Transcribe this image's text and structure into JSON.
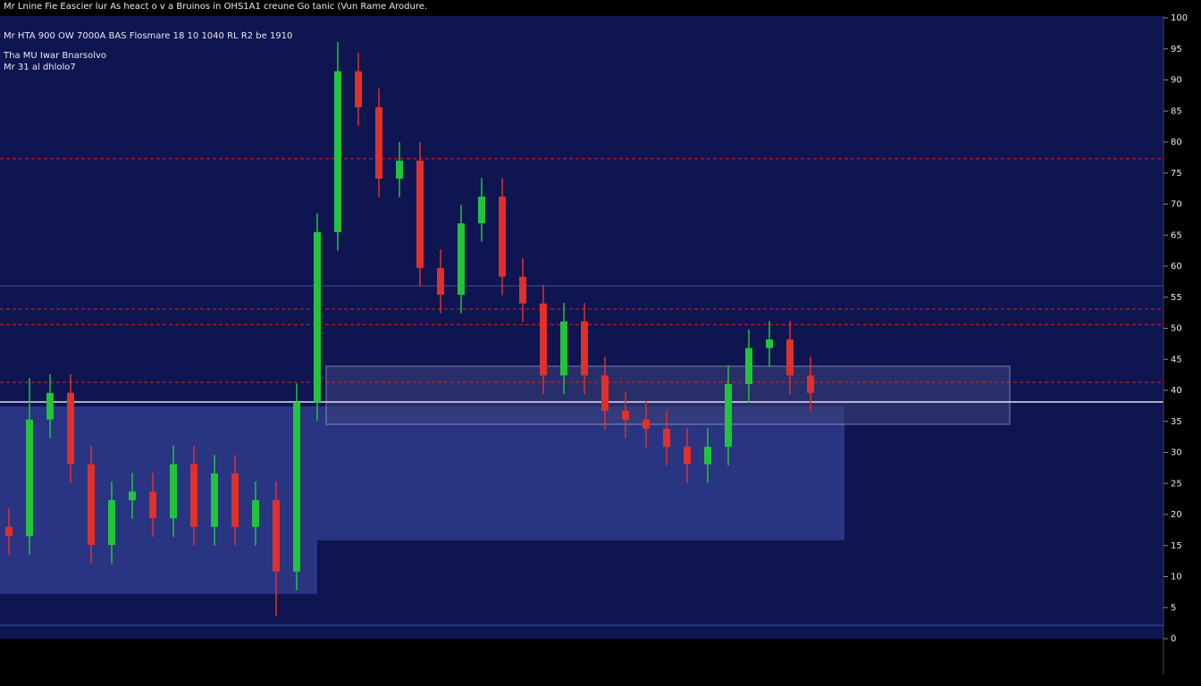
{
  "chart_data": {
    "type": "candlestick",
    "title": "Mr Lnine Fie Eascier lur As heact o v a Bruinos in OHS1A1 creune Go tanic (Vun Rame Arodure.",
    "subtitle_lines": [
      "Mr HTA 900 OW 7000A BAS Flosmare 18 10 1040 RL R2 be 1910",
      "Tha MU Iwar Bnarsolvo",
      "Mr 31 al dhlolo7"
    ],
    "open": [
      18.0,
      16.5,
      35.3,
      39.6,
      28.1,
      15.1,
      22.3,
      23.7,
      19.4,
      28.1,
      18.0,
      26.6,
      18.0,
      22.3,
      10.8,
      38.1,
      65.5,
      91.4,
      85.6,
      74.1,
      77.0,
      59.7,
      55.4,
      66.9,
      71.2,
      58.3,
      54.0,
      42.4,
      51.1,
      42.4,
      36.7,
      35.3,
      33.8,
      30.9,
      28.1,
      30.9,
      41.0,
      46.8,
      48.2,
      42.4
    ],
    "high": [
      21.0,
      42.0,
      42.6,
      42.6,
      31.1,
      25.3,
      26.7,
      26.7,
      31.1,
      31.1,
      29.6,
      29.6,
      25.3,
      25.3,
      41.1,
      68.5,
      96.1,
      94.4,
      88.6,
      80.0,
      80.0,
      62.7,
      69.9,
      74.2,
      74.2,
      61.3,
      57.0,
      54.1,
      54.1,
      45.4,
      39.7,
      38.3,
      36.8,
      33.9,
      33.9,
      44.0,
      49.8,
      51.2,
      51.2,
      45.4
    ],
    "low": [
      13.5,
      13.5,
      32.3,
      25.1,
      12.1,
      12.1,
      19.3,
      16.4,
      16.4,
      15.0,
      15.0,
      15.0,
      15.0,
      3.6,
      7.8,
      35.1,
      62.5,
      82.6,
      71.1,
      71.1,
      56.7,
      52.4,
      52.4,
      63.9,
      55.3,
      51.0,
      39.4,
      39.4,
      39.4,
      33.7,
      32.3,
      30.8,
      27.9,
      25.1,
      25.1,
      27.9,
      38.0,
      43.8,
      39.4,
      36.6
    ],
    "close": [
      16.5,
      35.3,
      39.6,
      28.1,
      15.1,
      22.3,
      23.7,
      19.4,
      28.1,
      18.0,
      26.6,
      18.0,
      22.3,
      10.8,
      38.1,
      65.5,
      91.4,
      85.6,
      74.1,
      77.0,
      59.7,
      55.4,
      66.9,
      71.2,
      58.3,
      54.0,
      42.4,
      51.1,
      42.4,
      36.7,
      35.3,
      33.8,
      30.9,
      28.1,
      30.9,
      41.0,
      46.8,
      48.2,
      42.4,
      39.6
    ],
    "up_color": "#22c43a",
    "down_color": "#e0302a",
    "levels": [
      77.3,
      53.1,
      50.6,
      41.3
    ],
    "level_color": "#d02828",
    "ylim": [
      0,
      100
    ],
    "yticks": [
      0,
      5,
      10,
      15,
      20,
      25,
      30,
      35,
      40,
      45,
      50,
      55,
      60,
      65,
      70,
      75,
      80,
      85,
      90,
      95,
      100
    ]
  }
}
